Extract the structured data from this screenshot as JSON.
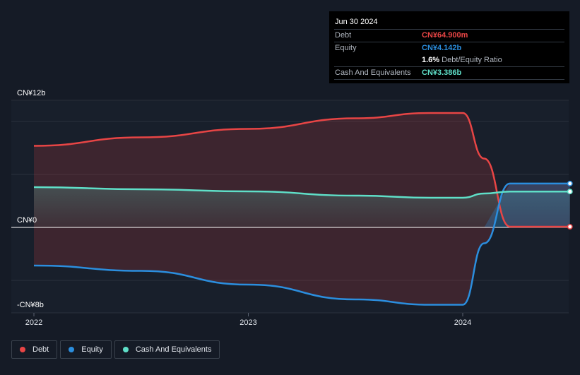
{
  "chart_data": {
    "type": "area",
    "title": "",
    "currency_unit": "CN¥",
    "y_axis": {
      "labels": [
        "CN¥12b",
        "CN¥0",
        "-CN¥8b"
      ],
      "ylim": [
        -8,
        12
      ],
      "gridlines": [
        12,
        10,
        5,
        0,
        -5
      ]
    },
    "x_axis": {
      "tick_labels": [
        "2022",
        "2023",
        "2024"
      ],
      "tick_values": [
        2022,
        2023,
        2024
      ],
      "xlim": [
        2021.95,
        2024.5
      ]
    },
    "grid": true,
    "legend_position": "bottom-left",
    "series": [
      {
        "name": "Debt",
        "color": "#e84545",
        "x": [
          2022.0,
          2022.5,
          2023.0,
          2023.5,
          2023.85,
          2024.0,
          2024.1,
          2024.22,
          2024.5
        ],
        "values": [
          7.7,
          8.5,
          9.3,
          10.3,
          10.8,
          10.8,
          6.5,
          0.07,
          0.065
        ]
      },
      {
        "name": "Equity",
        "color": "#2b8ede",
        "x": [
          2022.0,
          2022.5,
          2023.0,
          2023.5,
          2023.85,
          2024.0,
          2024.1,
          2024.22,
          2024.5
        ],
        "values": [
          -3.6,
          -4.1,
          -5.4,
          -6.8,
          -7.3,
          -7.3,
          -1.5,
          4.14,
          4.142
        ]
      },
      {
        "name": "Cash And Equivalents",
        "color": "#5fdfc8",
        "x": [
          2022.0,
          2022.5,
          2023.0,
          2023.5,
          2023.85,
          2024.0,
          2024.1,
          2024.22,
          2024.5
        ],
        "values": [
          3.8,
          3.6,
          3.4,
          3.0,
          2.8,
          2.8,
          3.2,
          3.386,
          3.386
        ]
      }
    ]
  },
  "tooltip": {
    "date": "Jun 30 2024",
    "rows": [
      {
        "label": "Debt",
        "value": "CN¥64.900m",
        "color": "#e84545"
      },
      {
        "label": "Equity",
        "value": "CN¥4.142b",
        "color": "#2b8ede"
      },
      {
        "ratio_value": "1.6%",
        "ratio_label": "Debt/Equity Ratio"
      },
      {
        "label": "Cash And Equivalents",
        "value": "CN¥3.386b",
        "color": "#5fdfc8"
      }
    ]
  },
  "legend": {
    "items": [
      {
        "label": "Debt",
        "color": "#e84545"
      },
      {
        "label": "Equity",
        "color": "#2b8ede"
      },
      {
        "label": "Cash And Equivalents",
        "color": "#5fdfc8"
      }
    ]
  }
}
